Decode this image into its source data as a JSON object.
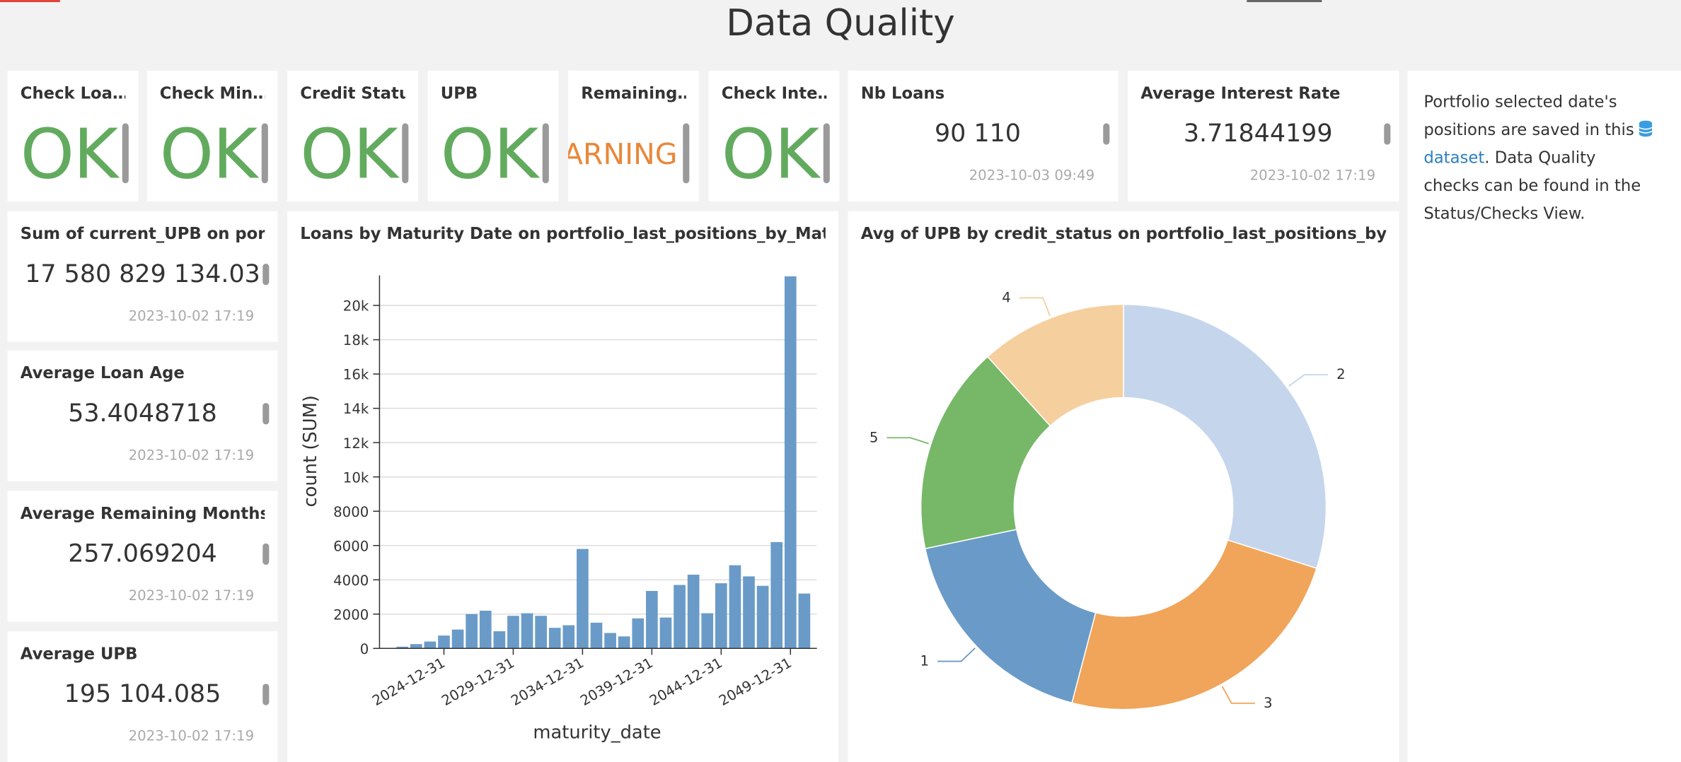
{
  "header": {
    "title": "Data Quality"
  },
  "status_tiles": [
    {
      "title": "Check Loa…",
      "status": "OK"
    },
    {
      "title": "Check Min…",
      "status": "OK"
    },
    {
      "title": "Credit Status",
      "status": "OK"
    },
    {
      "title": "UPB",
      "status": "OK"
    },
    {
      "title": "Remaining…",
      "status": "WARNING"
    },
    {
      "title": "Check Inte…",
      "status": "OK"
    }
  ],
  "metric_tiles": [
    {
      "title": "Nb Loans",
      "value": "90 110",
      "timestamp": "2023-10-03 09:49"
    },
    {
      "title": "Average Interest Rate",
      "value": "3.71844199",
      "timestamp": "2023-10-02 17:19"
    },
    {
      "title": "Sum of current_UPB on port…",
      "value": "17 580 829 134.03",
      "timestamp": "2023-10-02 17:19"
    },
    {
      "title": "Average Loan Age",
      "value": "53.4048718",
      "timestamp": "2023-10-02 17:19"
    },
    {
      "title": "Average Remaining Months",
      "value": "257.069204",
      "timestamp": "2023-10-02 17:19"
    },
    {
      "title": "Average UPB",
      "value": "195 104.085",
      "timestamp": "2023-10-02 17:19"
    }
  ],
  "text_tile": {
    "before": "Portfolio selected date's positions are saved in this",
    "link": "dataset",
    "after": ". Data Quality checks can be found in the Status/Checks View."
  },
  "chart_data": [
    {
      "type": "bar",
      "title": "Loans by Maturity Date on portfolio_last_positions_by_Maturity…",
      "x_label": "maturity_date",
      "y_label": "count (SUM)",
      "categories": [
        null,
        null,
        null,
        "2024-12-31",
        null,
        null,
        null,
        null,
        "2029-12-31",
        null,
        null,
        null,
        null,
        "2034-12-31",
        null,
        null,
        null,
        null,
        "2039-12-31",
        null,
        null,
        null,
        null,
        "2044-12-31",
        null,
        null,
        null,
        null,
        "2049-12-31",
        null
      ],
      "values": [
        100,
        250,
        400,
        750,
        1100,
        2000,
        2200,
        1000,
        1900,
        2050,
        1900,
        1200,
        1350,
        5800,
        1500,
        900,
        700,
        1750,
        3350,
        1800,
        3700,
        4300,
        2050,
        3800,
        4850,
        4200,
        3650,
        6200,
        21700,
        3200
      ],
      "color": "#6a9bc8",
      "ylim": [
        0,
        21750
      ],
      "yticks": [
        0,
        2000,
        4000,
        6000,
        8000,
        {
          "value": 10000,
          "label": "10k"
        },
        {
          "value": 12000,
          "label": "12k"
        },
        {
          "value": 14000,
          "label": "14k"
        },
        {
          "value": 16000,
          "label": "16k"
        },
        {
          "value": 18000,
          "label": "18k"
        },
        {
          "value": 20000,
          "label": "20k"
        }
      ],
      "grid": true
    },
    {
      "type": "pie",
      "title": "Avg of UPB by credit_status on portfolio_last_positions_by_cred…",
      "categories": [
        "2",
        "3",
        "1",
        "5",
        "4"
      ],
      "values": [
        29.9,
        24.2,
        17.6,
        16.6,
        11.7
      ],
      "colors": [
        "#c5d5ec",
        "#f0a55a",
        "#6a9bc8",
        "#76b868",
        "#f6cf9e"
      ],
      "donut": true
    }
  ]
}
